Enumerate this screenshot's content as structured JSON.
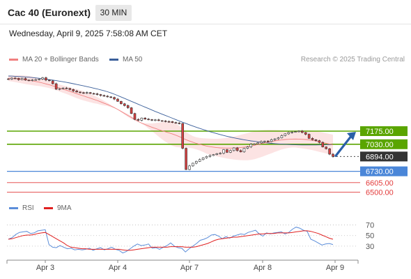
{
  "header": {
    "instrument": "Cac 40 (Euronext)",
    "timeframe": "30 MIN",
    "timestamp": "Wednesday, April 9, 2025 7:58:08 AM CET"
  },
  "legend": {
    "ma20_label": "MA 20 + Bollinger Bands",
    "ma50_label": "MA 50",
    "credit": "Research © 2025 Trading Central",
    "rsi_label": "RSI",
    "ma9_label": "9MA"
  },
  "colors": {
    "ma20": "#f08080",
    "bollinger_fill": "#fbd9d9",
    "ma50": "#3a5f9a",
    "resistance": "#5aa500",
    "support_primary": "#4a86d8",
    "support_secondary": "#e33b3b",
    "last_price": "#333333",
    "rsi": "#5b8dd9",
    "rsi_ma": "#e02020",
    "arrow": "#2a5fa8",
    "candle_up": "#ffffff",
    "candle_down": "#d44040"
  },
  "chart_data": [
    {
      "type": "candlestick",
      "x_labels": [
        "Apr 3",
        "Apr 4",
        "Apr 7",
        "Apr 8",
        "Apr 9"
      ],
      "ylim": [
        6480,
        7870
      ],
      "price_series": [
        7750,
        7762,
        7760,
        7745,
        7758,
        7740,
        7738,
        7742,
        7745,
        7752,
        7766,
        7740,
        7732,
        7700,
        7640,
        7645,
        7652,
        7648,
        7636,
        7620,
        7608,
        7601,
        7597,
        7602,
        7592,
        7588,
        7580,
        7570,
        7562,
        7555,
        7548,
        7530,
        7505,
        7478,
        7458,
        7434,
        7370,
        7305,
        7295,
        7320,
        7308,
        7303,
        7296,
        7300,
        7291,
        7288,
        7282,
        7281,
        7270,
        7265,
        7260,
        6985,
        6750,
        6790,
        6820,
        6840,
        6860,
        6880,
        6895,
        6905,
        6915,
        6925,
        6930,
        6970,
        6940,
        6960,
        6990,
        6960,
        6945,
        6985,
        7000,
        7030,
        7035,
        7045,
        7060,
        7065,
        7060,
        7080,
        7090,
        7100,
        7125,
        7145,
        7160,
        7165,
        7170,
        7175,
        7160,
        7140,
        7095,
        7080,
        7070,
        7050,
        7000,
        6980,
        6920,
        6894
      ],
      "ma20_series": [
        7760,
        7758,
        7756,
        7752,
        7748,
        7743,
        7738,
        7732,
        7725,
        7718,
        7708,
        7698,
        7688,
        7676,
        7664,
        7652,
        7640,
        7628,
        7616,
        7603,
        7590,
        7577,
        7565,
        7552,
        7540,
        7527,
        7515,
        7500,
        7485,
        7470,
        7453,
        7435,
        7415,
        7393,
        7370,
        7348,
        7326,
        7303,
        7282,
        7264,
        7248,
        7232,
        7218,
        7205,
        7192,
        7180,
        7168,
        7156,
        7143,
        7130,
        7115,
        7097,
        7080,
        7065,
        7052,
        7040,
        7030,
        7020,
        7010,
        7003,
        6998,
        6993,
        6990,
        6988,
        6987,
        6987,
        6988,
        6990,
        6994,
        6998,
        7003,
        7010,
        7018,
        7027,
        7036,
        7045,
        7053,
        7060,
        7067,
        7073,
        7078,
        7082,
        7085,
        7087,
        7088,
        7087,
        7085,
        7082,
        7078,
        7072,
        7065,
        7057,
        7048,
        7040,
        7032,
        7025
      ],
      "bb_upper_series": [
        7790,
        7792,
        7793,
        7793,
        7792,
        7790,
        7786,
        7780,
        7772,
        7762,
        7750,
        7737,
        7724,
        7712,
        7700,
        7690,
        7680,
        7670,
        7660,
        7650,
        7640,
        7628,
        7615,
        7600,
        7585,
        7570,
        7552,
        7532,
        7510,
        7488,
        7465,
        7440,
        7412,
        7385,
        7358,
        7332,
        7310,
        7292,
        7278,
        7268,
        7262,
        7260,
        7260,
        7264,
        7270,
        7275,
        7278,
        7278,
        7273,
        7260,
        7235,
        7200,
        7165,
        7140,
        7120,
        7108,
        7100,
        7096,
        7094,
        7092,
        7090,
        7090,
        7092,
        7096,
        7102,
        7108,
        7115,
        7124,
        7134,
        7144,
        7154,
        7164,
        7172,
        7179,
        7184,
        7188,
        7190,
        7190,
        7189,
        7187,
        7184,
        7182,
        7180,
        7180,
        7182,
        7185,
        7186,
        7186,
        7184,
        7180,
        7175,
        7168,
        7160,
        7152,
        7144,
        7136
      ],
      "bb_lower_series": [
        7730,
        7724,
        7719,
        7711,
        7704,
        7696,
        7690,
        7684,
        7678,
        7674,
        7666,
        7659,
        7652,
        7640,
        7628,
        7614,
        7600,
        7586,
        7572,
        7556,
        7540,
        7526,
        7515,
        7504,
        7495,
        7484,
        7478,
        7468,
        7460,
        7452,
        7441,
        7430,
        7418,
        7401,
        7382,
        7364,
        7342,
        7314,
        7286,
        7260,
        7234,
        7204,
        7176,
        7146,
        7114,
        7085,
        7058,
        7034,
        7013,
        7000,
        6995,
        6994,
        6995,
        6990,
        6984,
        6972,
        6960,
        6944,
        6926,
        6914,
        6906,
        6896,
        6888,
        6880,
        6872,
        6866,
        6861,
        6856,
        6854,
        6852,
        6852,
        6856,
        6864,
        6875,
        6888,
        6902,
        6916,
        6930,
        6945,
        6959,
        6972,
        6982,
        6990,
        6994,
        6994,
        6989,
        6984,
        6978,
        6972,
        6964,
        6955,
        6946,
        6936,
        6928,
        6920,
        6914
      ],
      "ma50_series": [
        7785,
        7784,
        7782,
        7780,
        7778,
        7775,
        7772,
        7768,
        7764,
        7760,
        7755,
        7750,
        7745,
        7740,
        7734,
        7728,
        7722,
        7715,
        7708,
        7700,
        7692,
        7684,
        7676,
        7668,
        7660,
        7651,
        7642,
        7632,
        7622,
        7611,
        7598,
        7584,
        7569,
        7553,
        7537,
        7521,
        7505,
        7489,
        7473,
        7457,
        7441,
        7425,
        7409,
        7393,
        7378,
        7363,
        7348,
        7333,
        7318,
        7303,
        7288,
        7273,
        7259,
        7245,
        7231,
        7218,
        7205,
        7193,
        7181,
        7169,
        7158,
        7147,
        7137,
        7127,
        7118,
        7109,
        7101,
        7093,
        7086,
        7079,
        7073,
        7067,
        7062,
        7057,
        7052,
        7048,
        7044,
        7040,
        7037,
        7034,
        7031,
        7029,
        7027,
        7025,
        7024,
        7023,
        7022,
        7022,
        7022,
        7022,
        7022,
        7023,
        7023,
        7024,
        7025,
        7026
      ],
      "levels": [
        {
          "label": "7175.00",
          "value": 7175,
          "kind": "resistance"
        },
        {
          "label": "7030.00",
          "value": 7030,
          "kind": "resistance"
        },
        {
          "label": "6894.00",
          "value": 6894,
          "kind": "last"
        },
        {
          "label": "6730.00",
          "value": 6730,
          "kind": "support_primary"
        },
        {
          "label": "6605.00",
          "value": 6605,
          "kind": "support_secondary"
        },
        {
          "label": "6500.00",
          "value": 6500,
          "kind": "support_secondary"
        }
      ],
      "forecast_arrow": {
        "from_price": 6894,
        "to_price": 7175,
        "direction": "up"
      }
    },
    {
      "type": "line",
      "title": "RSI",
      "ylim": [
        10,
        80
      ],
      "y_ticks": [
        70,
        50,
        30
      ],
      "series": [
        {
          "name": "RSI",
          "values": [
            43,
            46,
            52,
            56,
            57,
            58,
            54,
            55,
            59,
            60,
            61,
            33,
            28,
            27,
            31,
            28,
            25,
            26,
            23,
            24,
            23,
            24,
            26,
            22,
            25,
            27,
            23,
            25,
            28,
            24,
            22,
            17,
            20,
            25,
            30,
            34,
            31,
            32,
            34,
            26,
            27,
            24,
            28,
            31,
            36,
            30,
            27,
            26,
            19,
            25,
            30,
            35,
            41,
            43,
            46,
            51,
            52,
            49,
            44,
            48,
            45,
            49,
            51,
            53,
            52,
            56,
            58,
            60,
            53,
            49,
            55,
            53,
            55,
            56,
            57,
            53,
            56,
            62,
            66,
            64,
            60,
            58,
            43,
            40,
            36,
            32,
            34,
            35,
            33
          ]
        },
        {
          "name": "9MA",
          "values": [
            43,
            44,
            46,
            48,
            50,
            51,
            51,
            52,
            54,
            55,
            56,
            52,
            48,
            44,
            40,
            36,
            31,
            28,
            27,
            26,
            25,
            25,
            24,
            24,
            24,
            24,
            24,
            24,
            24,
            24,
            24,
            23,
            22,
            22,
            23,
            24,
            25,
            26,
            27,
            28,
            28,
            28,
            28,
            28,
            29,
            29,
            29,
            29,
            28,
            28,
            28,
            29,
            31,
            33,
            35,
            38,
            41,
            43,
            44,
            45,
            46,
            47,
            47,
            48,
            49,
            50,
            51,
            52,
            53,
            53,
            54,
            54,
            54,
            55,
            55,
            55,
            55,
            56,
            57,
            58,
            59,
            59,
            58,
            56,
            54,
            51,
            48,
            45,
            43
          ]
        }
      ]
    }
  ]
}
